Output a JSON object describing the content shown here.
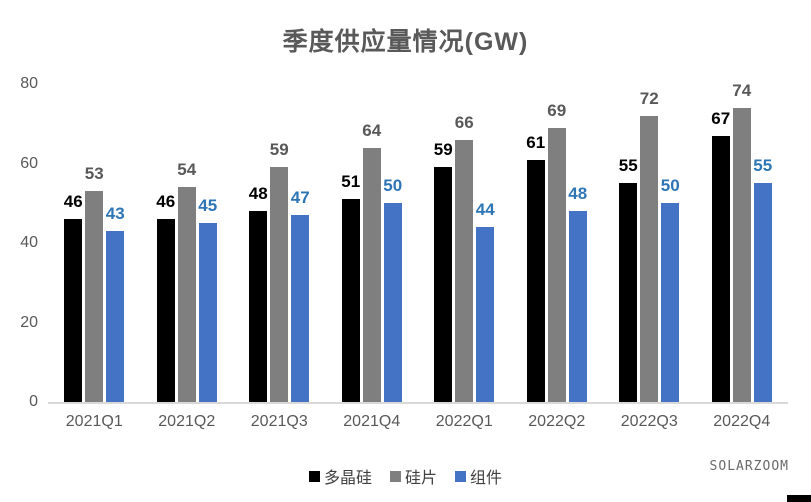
{
  "watermark": {
    "text": "SOLARZOOM"
  },
  "chart_data": {
    "type": "bar",
    "title": "季度供应量情况(GW)",
    "categories": [
      "2021Q1",
      "2021Q2",
      "2021Q3",
      "2021Q4",
      "2022Q1",
      "2022Q2",
      "2022Q3",
      "2022Q4"
    ],
    "series": [
      {
        "name": "多晶硅",
        "color": "#000000",
        "label_color": "#000000",
        "values": [
          46,
          46,
          48,
          51,
          59,
          61,
          55,
          67
        ]
      },
      {
        "name": "硅片",
        "color": "#7f7f7f",
        "label_color": "#595959",
        "values": [
          53,
          54,
          59,
          64,
          66,
          69,
          72,
          74
        ]
      },
      {
        "name": "组件",
        "color": "#4472c4",
        "label_color": "#2e75b6",
        "values": [
          43,
          45,
          47,
          50,
          44,
          48,
          50,
          55
        ]
      }
    ],
    "ylim": [
      0,
      80
    ],
    "yticks": [
      0,
      20,
      40,
      60,
      80
    ],
    "grid": false,
    "data_labels": true,
    "legend_position": "bottom-center",
    "title_color": "#595959",
    "tick_label_color": "#595959",
    "axis_line_color": "#d9d9d9"
  }
}
